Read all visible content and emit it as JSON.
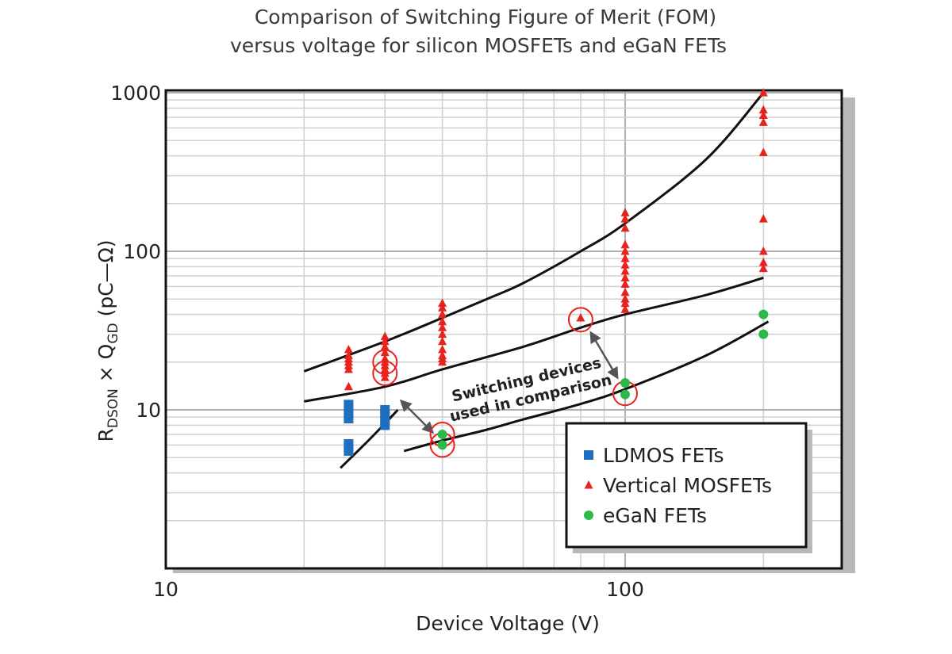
{
  "chart_data": {
    "type": "scatter",
    "title_lines": [
      "Comparison of Switching Figure of Merit (FOM)",
      "versus voltage for silicon MOSFETs and eGaN FETs"
    ],
    "xlabel": "Device  Voltage (V)",
    "ylabel": {
      "base": "R",
      "sub1": "DSON",
      "mid": " × Q",
      "sub2": "GD",
      "tail": " (pC—Ω)"
    },
    "x_scale": "log",
    "y_scale": "log",
    "xlim": [
      10,
      300
    ],
    "ylim": [
      1,
      1000
    ],
    "x_ticks": [
      {
        "value": 10,
        "label": "10"
      },
      {
        "value": 100,
        "label": "100"
      }
    ],
    "y_ticks": [
      {
        "value": 10,
        "label": "10"
      },
      {
        "value": 100,
        "label": "100"
      },
      {
        "value": 1000,
        "label": "1000"
      }
    ],
    "grid": true,
    "legend_position": "bottom-right",
    "series": [
      {
        "name": "LDMOS FETs",
        "marker": "square",
        "color": "#1f6fc0",
        "points": [
          {
            "x": 25,
            "y": 5.5
          },
          {
            "x": 25,
            "y": 5.8
          },
          {
            "x": 25,
            "y": 6.1
          },
          {
            "x": 25,
            "y": 8.8
          },
          {
            "x": 25,
            "y": 9.4
          },
          {
            "x": 25,
            "y": 10.1
          },
          {
            "x": 25,
            "y": 10.8
          },
          {
            "x": 30,
            "y": 8.0
          },
          {
            "x": 30,
            "y": 8.6
          },
          {
            "x": 30,
            "y": 9.3
          },
          {
            "x": 30,
            "y": 10.0
          }
        ]
      },
      {
        "name": "Vertical MOSFETs",
        "marker": "triangle",
        "color": "#e8221c",
        "points": [
          {
            "x": 25,
            "y": 14
          },
          {
            "x": 25,
            "y": 18
          },
          {
            "x": 25,
            "y": 19
          },
          {
            "x": 25,
            "y": 20
          },
          {
            "x": 25,
            "y": 21
          },
          {
            "x": 25,
            "y": 22
          },
          {
            "x": 25,
            "y": 24
          },
          {
            "x": 30,
            "y": 16
          },
          {
            "x": 30,
            "y": 17
          },
          {
            "x": 30,
            "y": 18
          },
          {
            "x": 30,
            "y": 19
          },
          {
            "x": 30,
            "y": 20
          },
          {
            "x": 30,
            "y": 21
          },
          {
            "x": 30,
            "y": 23
          },
          {
            "x": 30,
            "y": 25
          },
          {
            "x": 30,
            "y": 27
          },
          {
            "x": 30,
            "y": 29
          },
          {
            "x": 40,
            "y": 20
          },
          {
            "x": 40,
            "y": 21
          },
          {
            "x": 40,
            "y": 22
          },
          {
            "x": 40,
            "y": 24
          },
          {
            "x": 40,
            "y": 27
          },
          {
            "x": 40,
            "y": 30
          },
          {
            "x": 40,
            "y": 33
          },
          {
            "x": 40,
            "y": 36
          },
          {
            "x": 40,
            "y": 40
          },
          {
            "x": 40,
            "y": 44
          },
          {
            "x": 40,
            "y": 47
          },
          {
            "x": 80,
            "y": 38
          },
          {
            "x": 100,
            "y": 43
          },
          {
            "x": 100,
            "y": 47
          },
          {
            "x": 100,
            "y": 50
          },
          {
            "x": 100,
            "y": 55
          },
          {
            "x": 100,
            "y": 62
          },
          {
            "x": 100,
            "y": 68
          },
          {
            "x": 100,
            "y": 75
          },
          {
            "x": 100,
            "y": 82
          },
          {
            "x": 100,
            "y": 90
          },
          {
            "x": 100,
            "y": 100
          },
          {
            "x": 100,
            "y": 110
          },
          {
            "x": 100,
            "y": 140
          },
          {
            "x": 100,
            "y": 160
          },
          {
            "x": 100,
            "y": 175
          },
          {
            "x": 200,
            "y": 78
          },
          {
            "x": 200,
            "y": 85
          },
          {
            "x": 200,
            "y": 100
          },
          {
            "x": 200,
            "y": 160
          },
          {
            "x": 200,
            "y": 420
          },
          {
            "x": 200,
            "y": 650
          },
          {
            "x": 200,
            "y": 720
          },
          {
            "x": 200,
            "y": 780
          },
          {
            "x": 200,
            "y": 1000
          }
        ]
      },
      {
        "name": "eGaN FETs",
        "marker": "circle",
        "color": "#2db84a",
        "points": [
          {
            "x": 40,
            "y": 6
          },
          {
            "x": 40,
            "y": 7
          },
          {
            "x": 100,
            "y": 12.5
          },
          {
            "x": 100,
            "y": 14.8
          },
          {
            "x": 200,
            "y": 30
          },
          {
            "x": 200,
            "y": 40
          }
        ]
      }
    ],
    "trend_lines": [
      {
        "points": [
          [
            20,
            17.5
          ],
          [
            30,
            27
          ],
          [
            40,
            38
          ],
          [
            50,
            50
          ],
          [
            60,
            63
          ],
          [
            80,
            100
          ],
          [
            100,
            150
          ],
          [
            150,
            380
          ],
          [
            200,
            1000
          ]
        ]
      },
      {
        "points": [
          [
            20,
            11.3
          ],
          [
            30,
            14
          ],
          [
            40,
            18
          ],
          [
            60,
            25
          ],
          [
            80,
            33
          ],
          [
            100,
            40
          ],
          [
            150,
            53
          ],
          [
            200,
            68
          ]
        ]
      },
      {
        "points": [
          [
            24,
            4.3
          ],
          [
            27,
            6.0
          ],
          [
            30,
            8.2
          ],
          [
            32,
            10.0
          ]
        ]
      },
      {
        "points": [
          [
            33,
            5.5
          ],
          [
            40,
            6.4
          ],
          [
            50,
            7.5
          ],
          [
            60,
            8.7
          ],
          [
            80,
            10.9
          ],
          [
            100,
            13.5
          ],
          [
            150,
            22
          ],
          [
            205,
            36
          ]
        ]
      }
    ],
    "highlighted": [
      {
        "x": 30,
        "y": 20
      },
      {
        "x": 30,
        "y": 17
      },
      {
        "x": 40,
        "y": 7
      },
      {
        "x": 40,
        "y": 6
      },
      {
        "x": 80,
        "y": 37
      },
      {
        "x": 100,
        "y": 12.7
      }
    ],
    "annotation": {
      "lines": [
        "Switching devices",
        "used in comparison"
      ]
    }
  }
}
